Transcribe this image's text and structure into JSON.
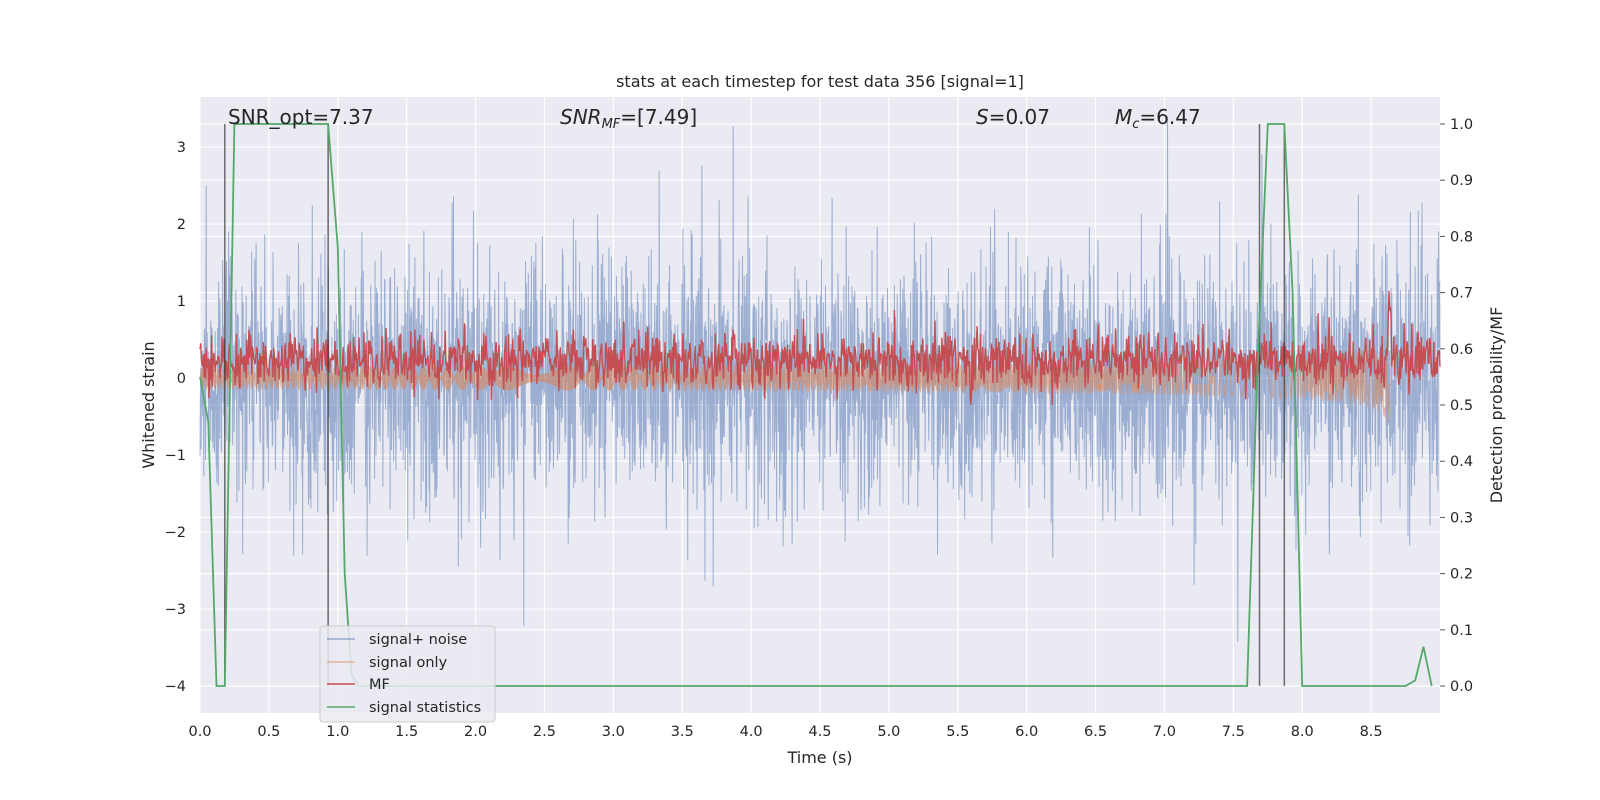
{
  "chart_data": {
    "type": "line",
    "title": "stats at each timestep for test data 356 [signal=1]",
    "xlabel": "Time (s)",
    "ylabel": "Whitened strain",
    "y2label": "Detection probability/MF",
    "xlim": [
      0.0,
      9.0
    ],
    "ylim": [
      -4.35,
      3.65
    ],
    "y2lim": [
      -0.048,
      1.048
    ],
    "xticks": [
      "0.0",
      "0.5",
      "1.0",
      "1.5",
      "2.0",
      "2.5",
      "3.0",
      "3.5",
      "4.0",
      "4.5",
      "5.0",
      "5.5",
      "6.0",
      "6.5",
      "7.0",
      "7.5",
      "8.0",
      "8.5"
    ],
    "yticks": [
      "3",
      "2",
      "1",
      "0",
      "−1",
      "−2",
      "−3",
      "−4"
    ],
    "y2ticks": [
      "1.0",
      "0.9",
      "0.8",
      "0.7",
      "0.6",
      "0.5",
      "0.4",
      "0.3",
      "0.2",
      "0.1",
      "0.0"
    ],
    "grid": true,
    "legend_position": "lower-left",
    "annotations": {
      "snr_opt": "SNR_opt=7.37",
      "snr_mf_main": "SNR",
      "snr_mf_sub": "MF",
      "snr_mf_rest": "=[7.49]",
      "s_sym": "S",
      "s_rest": "=0.07",
      "mc_main": "M",
      "mc_sub": "c",
      "mc_rest": "=6.47"
    },
    "series": [
      {
        "name": "signal+ noise",
        "color": "#4c72b0",
        "axis": "left",
        "description_range": [
          -4.0,
          3.4
        ],
        "std": 0.8
      },
      {
        "name": "signal only",
        "color": "#dd8452",
        "axis": "left",
        "chirp_end": 8.65,
        "chirp_peak_amplitude": 0.65
      },
      {
        "name": "MF",
        "color": "#c44e52",
        "axis": "right",
        "baseline": 0.58,
        "noise_amplitude": 0.035,
        "peak": {
          "x": 8.63,
          "y": 0.68
        }
      },
      {
        "name": "signal statistics",
        "color": "#55a868",
        "axis": "right",
        "x": [
          0.0,
          0.06,
          0.12,
          0.18,
          0.25,
          0.93,
          1.0,
          1.05,
          1.1,
          1.15,
          1.2,
          7.6,
          7.68,
          7.75,
          7.87,
          7.93,
          8.0,
          8.6,
          8.75,
          8.82,
          8.88,
          8.94
        ],
        "y": [
          0.55,
          0.47,
          0.0,
          0.0,
          1.0,
          1.0,
          0.78,
          0.2,
          0.02,
          0.0,
          0.0,
          0.0,
          0.6,
          1.0,
          1.0,
          0.7,
          0.0,
          0.0,
          0.0,
          0.01,
          0.07,
          0.0
        ]
      }
    ],
    "vertical_lines": [
      0.18,
      0.93,
      7.69,
      7.87
    ]
  }
}
